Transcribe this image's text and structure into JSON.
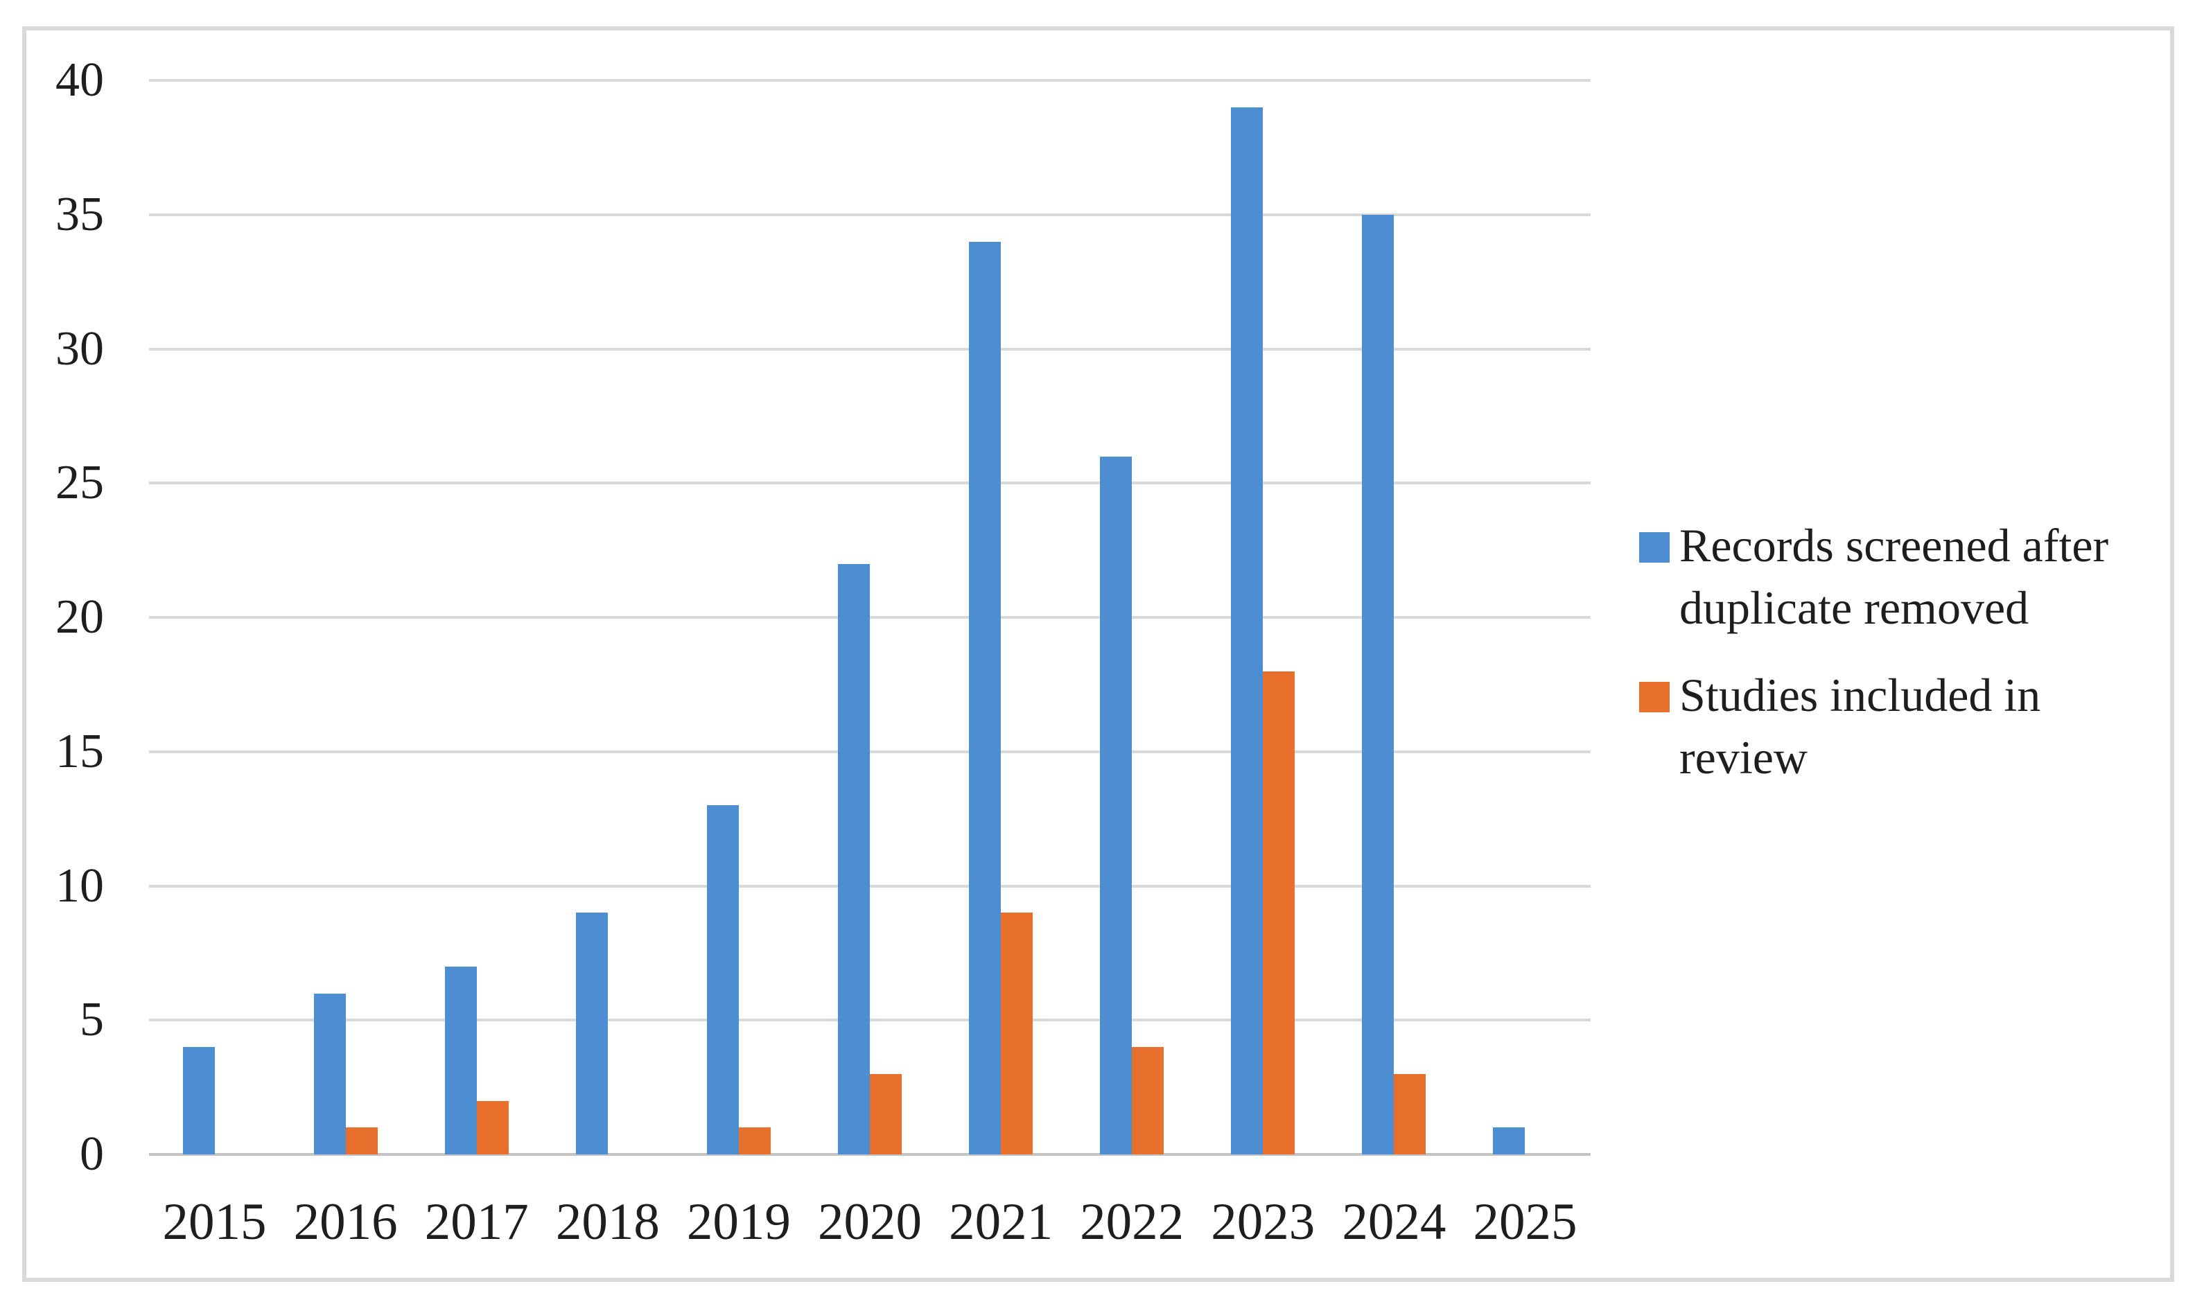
{
  "chart_data": {
    "type": "bar",
    "title": "",
    "xlabel": "",
    "ylabel": "",
    "categories": [
      "2015",
      "2016",
      "2017",
      "2018",
      "2019",
      "2020",
      "2021",
      "2022",
      "2023",
      "2024",
      "2025"
    ],
    "series": [
      {
        "name": "Records screened after duplicate removed",
        "legend_lines": [
          "Records screened after",
          "duplicate removed"
        ],
        "color": "#4D8ED3",
        "values": [
          4,
          6,
          7,
          9,
          13,
          22,
          34,
          26,
          39,
          35,
          1
        ]
      },
      {
        "name": "Studies included in review",
        "legend_lines": [
          "Studies included in",
          "review"
        ],
        "color": "#E8702C",
        "values": [
          0,
          1,
          2,
          0,
          1,
          3,
          9,
          4,
          18,
          3,
          0
        ]
      }
    ],
    "ylim": [
      0,
      40
    ],
    "y_ticks": [
      0,
      5,
      10,
      15,
      20,
      25,
      30,
      35,
      40
    ],
    "grid": true,
    "legend_position": "right"
  },
  "colors": {
    "background": "#FFFFFF",
    "frame_border": "#D9D9D9",
    "gridline": "#D9D9D9",
    "axis_line": "#C3C3C3",
    "text": "#1E1E1E"
  }
}
